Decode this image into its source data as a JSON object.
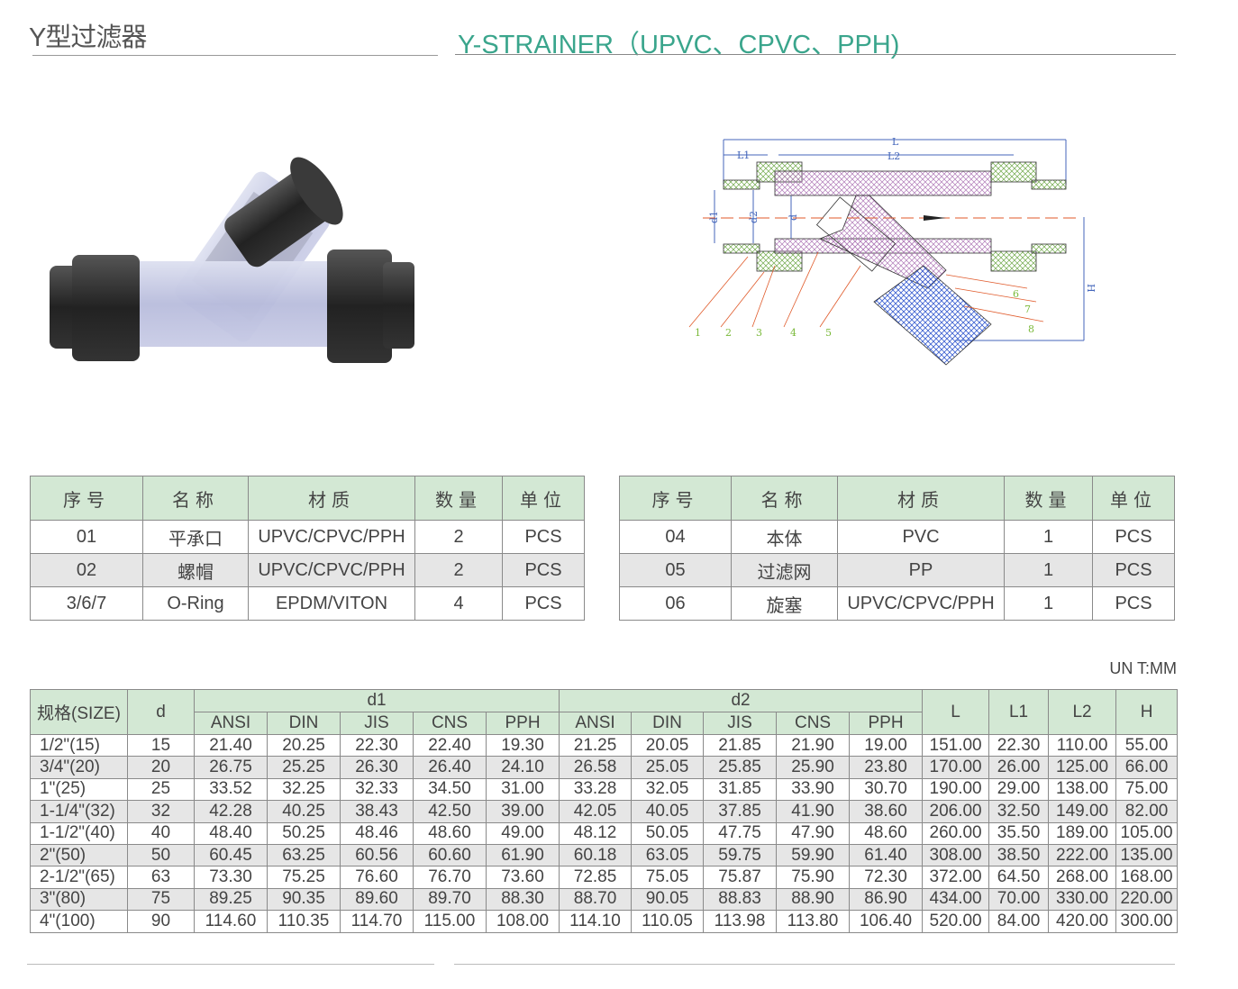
{
  "header": {
    "title_cn": "Y型过滤器",
    "title_en": "Y-STRAINER（UPVC、CPVC、PPH)"
  },
  "colors": {
    "accent": "#3aa58c",
    "table_header": "#d3e8d4",
    "row_alt": "#e6e6e6"
  },
  "diagram": {
    "dimension_labels": [
      "L",
      "L1",
      "L2",
      "d1",
      "d2",
      "d",
      "H"
    ],
    "part_numbers": [
      "1",
      "2",
      "3",
      "4",
      "5",
      "6",
      "7",
      "8"
    ]
  },
  "parts_tables": [
    {
      "headers": [
        "序号",
        "名称",
        "材质",
        "数量",
        "单位"
      ],
      "rows": [
        [
          "01",
          "平承口",
          "UPVC/CPVC/PPH",
          "2",
          "PCS"
        ],
        [
          "02",
          "螺帽",
          "UPVC/CPVC/PPH",
          "2",
          "PCS"
        ],
        [
          "3/6/7",
          "O-Ring",
          "EPDM/VITON",
          "4",
          "PCS"
        ]
      ]
    },
    {
      "headers": [
        "序号",
        "名称",
        "材质",
        "数量",
        "单位"
      ],
      "rows": [
        [
          "04",
          "本体",
          "PVC",
          "1",
          "PCS"
        ],
        [
          "05",
          "过滤网",
          "PP",
          "1",
          "PCS"
        ],
        [
          "06",
          "旋塞",
          "UPVC/CPVC/PPH",
          "1",
          "PCS"
        ]
      ]
    }
  ],
  "unit_label": "UN T:MM",
  "dimension_table": {
    "size_header": "规格(SIZE)",
    "d_header": "d",
    "d1_header": "d1",
    "d2_header": "d2",
    "standards": [
      "ANSI",
      "DIN",
      "JIS",
      "CNS",
      "PPH"
    ],
    "tail_headers": [
      "L",
      "L1",
      "L2",
      "H"
    ],
    "rows": [
      [
        "1/2\"(15)",
        "15",
        "21.40",
        "20.25",
        "22.30",
        "22.40",
        "19.30",
        "21.25",
        "20.05",
        "21.85",
        "21.90",
        "19.00",
        "151.00",
        "22.30",
        "110.00",
        "55.00"
      ],
      [
        "3/4\"(20)",
        "20",
        "26.75",
        "25.25",
        "26.30",
        "26.40",
        "24.10",
        "26.58",
        "25.05",
        "25.85",
        "25.90",
        "23.80",
        "170.00",
        "26.00",
        "125.00",
        "66.00"
      ],
      [
        "1\"(25)",
        "25",
        "33.52",
        "32.25",
        "32.33",
        "34.50",
        "31.00",
        "33.28",
        "32.05",
        "31.85",
        "33.90",
        "30.70",
        "190.00",
        "29.00",
        "138.00",
        "75.00"
      ],
      [
        "1-1/4\"(32)",
        "32",
        "42.28",
        "40.25",
        "38.43",
        "42.50",
        "39.00",
        "42.05",
        "40.05",
        "37.85",
        "41.90",
        "38.60",
        "206.00",
        "32.50",
        "149.00",
        "82.00"
      ],
      [
        "1-1/2\"(40)",
        "40",
        "48.40",
        "50.25",
        "48.46",
        "48.60",
        "49.00",
        "48.12",
        "50.05",
        "47.75",
        "47.90",
        "48.60",
        "260.00",
        "35.50",
        "189.00",
        "105.00"
      ],
      [
        "2\"(50)",
        "50",
        "60.45",
        "63.25",
        "60.56",
        "60.60",
        "61.90",
        "60.18",
        "63.05",
        "59.75",
        "59.90",
        "61.40",
        "308.00",
        "38.50",
        "222.00",
        "135.00"
      ],
      [
        "2-1/2\"(65)",
        "63",
        "73.30",
        "75.25",
        "76.60",
        "76.70",
        "73.60",
        "72.85",
        "75.05",
        "75.87",
        "75.90",
        "72.30",
        "372.00",
        "64.50",
        "268.00",
        "168.00"
      ],
      [
        "3\"(80)",
        "75",
        "89.25",
        "90.35",
        "89.60",
        "89.70",
        "88.30",
        "88.70",
        "90.05",
        "88.83",
        "88.90",
        "86.90",
        "434.00",
        "70.00",
        "330.00",
        "220.00"
      ],
      [
        "4\"(100)",
        "90",
        "114.60",
        "110.35",
        "114.70",
        "115.00",
        "108.00",
        "114.10",
        "110.05",
        "113.98",
        "113.80",
        "106.40",
        "520.00",
        "84.00",
        "420.00",
        "300.00"
      ]
    ]
  }
}
